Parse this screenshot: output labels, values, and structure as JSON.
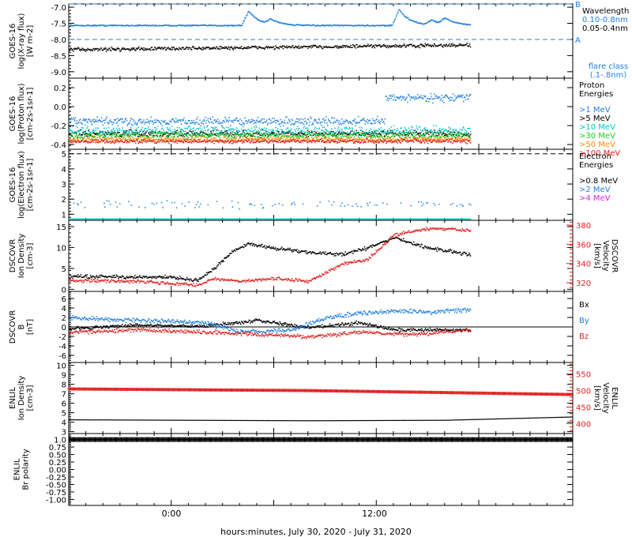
{
  "xaxis": {
    "label": "hours:minutes, July 30, 2020 - July 31, 2020",
    "tick_labels": [
      "0:00",
      "12:00"
    ],
    "tick_hours": [
      0,
      12
    ],
    "range_hours": [
      -6,
      23.5
    ]
  },
  "colors": {
    "frame": "#000000",
    "blue": "#1f7fe0",
    "black": "#000000",
    "cyan": "#00c8c8",
    "green": "#22cc22",
    "orange": "#ff8c00",
    "red": "#e02020",
    "magenta": "#e020e0"
  },
  "chart_data": [
    {
      "type": "scatter",
      "ylabel": "GOES-16\nlog(X-ray flux)\n[W m-2]",
      "ylim": [
        -9.2,
        -6.9
      ],
      "ytick_labels": [
        "-7.0",
        "-7.5",
        "-8.0",
        "-8.5",
        "-9.0"
      ],
      "ytick_values": [
        -7.0,
        -7.5,
        -8.0,
        -8.5,
        -9.0
      ],
      "dashed_levels": [
        -6.9,
        -8.0
      ],
      "level_labels": [
        "B",
        "A"
      ],
      "legend": {
        "title": "Wavelength",
        "entries": [
          "0.10-0.8nm",
          "0.05-0.4nm"
        ],
        "entry_colors": [
          "blue",
          "black"
        ],
        "note": "flare class\n(.1-.8nm)"
      },
      "series": [
        {
          "name": "0.10-0.8nm",
          "color": "blue",
          "base": -7.55,
          "noise": 0.03,
          "t_end": 17.5,
          "flares": [
            {
              "t": 4.5,
              "peak": -7.1
            },
            {
              "t": 5.8,
              "peak": -7.4
            },
            {
              "t": 13.3,
              "peak": -7.05
            },
            {
              "t": 15.2,
              "peak": -7.4
            },
            {
              "t": 16.0,
              "peak": -7.35
            }
          ]
        },
        {
          "name": "0.05-0.4nm",
          "color": "black",
          "base": -8.3,
          "noise": 0.08,
          "t_end": 17.5,
          "trend": 0.006
        }
      ]
    },
    {
      "type": "scatter",
      "ylabel": "GOES-16\nlog(Proton flux)\n[cm-2s-1sr-1]",
      "ylim": [
        -0.45,
        0.3
      ],
      "ytick_labels": [
        "0.2",
        "0.0",
        "-0.2",
        "-0.4"
      ],
      "ytick_values": [
        0.2,
        0.0,
        -0.2,
        -0.4
      ],
      "legend": {
        "title": "Proton\nEnergies",
        "entries": [
          ">1 MeV",
          ">5 MeV",
          ">10 MeV",
          ">30 MeV",
          ">50 MeV",
          ">100 MeV"
        ],
        "entry_colors": [
          "blue",
          "black",
          "cyan",
          "green",
          "orange",
          "red"
        ]
      },
      "series": [
        {
          "name": ">1 MeV",
          "color": "blue",
          "base": -0.15,
          "noise": 0.06,
          "t_end": 17.5,
          "jump": {
            "t": 12.5,
            "to": 0.1
          }
        },
        {
          "name": ">5 MeV",
          "color": "black",
          "base": -0.28,
          "noise": 0.05,
          "t_end": 17.5
        },
        {
          "name": ">10 MeV",
          "color": "cyan",
          "base": -0.25,
          "noise": 0.07,
          "t_end": 17.5
        },
        {
          "name": ">30 MeV",
          "color": "green",
          "base": -0.3,
          "noise": 0.05,
          "t_end": 17.5
        },
        {
          "name": ">50 MeV",
          "color": "orange",
          "base": -0.34,
          "noise": 0.04,
          "t_end": 17.5
        },
        {
          "name": ">100 MeV",
          "color": "red",
          "base": -0.36,
          "noise": 0.03,
          "t_end": 17.5
        }
      ]
    },
    {
      "type": "scatter",
      "ylabel": "GOES-16\nlog(Electron flux)\n[cm-2s-1sr-1]",
      "ylim": [
        0.6,
        5.3
      ],
      "ytick_labels": [
        "5",
        "4",
        "3",
        "2",
        "1"
      ],
      "ytick_values": [
        5,
        4,
        3,
        2,
        1
      ],
      "dashed_levels": [
        5.0
      ],
      "legend": {
        "title": "Electron\nEnergies",
        "entries": [
          ">0.8 MeV",
          ">2 MeV",
          ">4 MeV"
        ],
        "entry_colors": [
          "black",
          "blue",
          "magenta"
        ]
      },
      "series": [
        {
          "name": ">2 MeV",
          "color": "blue",
          "base": 1.7,
          "noise": 0.35,
          "t_end": 17.5,
          "sparse": true
        },
        {
          "name": ">2 MeV baseline",
          "color": "cyan",
          "base": 0.72,
          "noise": 0.0,
          "t_end": 17.5
        }
      ]
    },
    {
      "type": "scatter",
      "ylabel": "DSCOVR\nIon Density\n[cm-3]",
      "ylim": [
        -0.5,
        16.5
      ],
      "ytick_labels": [
        "15",
        "10",
        "5",
        "0"
      ],
      "ytick_values": [
        15,
        10,
        5,
        0
      ],
      "y2label": "DSCOVR\nVelocity\n[km/s]",
      "y2lim": [
        311,
        385
      ],
      "y2tick_labels": [
        "380",
        "360",
        "340",
        "320"
      ],
      "y2tick_values": [
        380,
        360,
        340,
        320
      ],
      "series": [
        {
          "name": "density",
          "color": "black",
          "axis": "left",
          "t_end": 17.5,
          "noise": 0.6,
          "knots": [
            [
              -6,
              3.2
            ],
            [
              0,
              3
            ],
            [
              1.5,
              2.2
            ],
            [
              2.5,
              5
            ],
            [
              3.5,
              9
            ],
            [
              4.5,
              11
            ],
            [
              6,
              10
            ],
            [
              8,
              9
            ],
            [
              10,
              8.5
            ],
            [
              11.5,
              10
            ],
            [
              13,
              12.5
            ],
            [
              15,
              10
            ],
            [
              17.5,
              8.5
            ]
          ]
        },
        {
          "name": "velocity",
          "color": "red",
          "axis": "right",
          "t_end": 17.5,
          "noise": 2.5,
          "knots": [
            [
              -6,
              323
            ],
            [
              -2,
              322
            ],
            [
              1.5,
              318
            ],
            [
              2.5,
              325
            ],
            [
              4,
              322
            ],
            [
              6,
              325
            ],
            [
              8,
              322
            ],
            [
              10,
              340
            ],
            [
              11.5,
              345
            ],
            [
              13,
              370
            ],
            [
              15,
              377
            ],
            [
              17.5,
              375
            ]
          ]
        }
      ]
    },
    {
      "type": "scatter",
      "ylabel": "DSCOVR\nB\n[nT]",
      "ylim": [
        -7.5,
        7.5
      ],
      "ytick_labels": [
        "6",
        "4",
        "2",
        "0",
        "-2",
        "-4",
        "-6"
      ],
      "ytick_values": [
        6,
        4,
        2,
        0,
        -2,
        -4,
        -6
      ],
      "zero_line": true,
      "legend": {
        "entries": [
          "Bx",
          "By",
          "Bz"
        ],
        "entry_colors": [
          "black",
          "blue",
          "red"
        ]
      },
      "series": [
        {
          "name": "Bx",
          "color": "black",
          "t_end": 17.5,
          "noise": 0.5,
          "knots": [
            [
              -6,
              -0.3
            ],
            [
              -2,
              0.5
            ],
            [
              2,
              0.3
            ],
            [
              5,
              1.5
            ],
            [
              8,
              0
            ],
            [
              11,
              1
            ],
            [
              13,
              -0.5
            ],
            [
              17.5,
              -0.5
            ]
          ]
        },
        {
          "name": "By",
          "color": "blue",
          "t_end": 17.5,
          "noise": 0.7,
          "knots": [
            [
              -6,
              2
            ],
            [
              -2,
              1.5
            ],
            [
              2,
              1
            ],
            [
              4,
              -1
            ],
            [
              7,
              -0.5
            ],
            [
              9,
              2
            ],
            [
              11,
              3
            ],
            [
              13,
              3.5
            ],
            [
              15,
              3.3
            ],
            [
              17.5,
              3.8
            ]
          ]
        },
        {
          "name": "Bz",
          "color": "red",
          "t_end": 17.5,
          "noise": 0.6,
          "knots": [
            [
              -6,
              -1
            ],
            [
              -2,
              -0.5
            ],
            [
              2,
              -1
            ],
            [
              5,
              -1.5
            ],
            [
              8,
              -2
            ],
            [
              11,
              -1
            ],
            [
              14,
              -1.5
            ],
            [
              17.5,
              -0.5
            ]
          ]
        }
      ]
    },
    {
      "type": "scatter",
      "ylabel": "ENLIL\nIon Density\n[cm-3]",
      "ylim": [
        2.8,
        10.3
      ],
      "ytick_labels": [
        "10",
        "9",
        "8",
        "7",
        "6",
        "5",
        "4",
        "3"
      ],
      "ytick_values": [
        10,
        9,
        8,
        7,
        6,
        5,
        4,
        3
      ],
      "y2label": "ENLIL\nVelocity\n[km/s]",
      "y2lim": [
        370,
        585
      ],
      "y2tick_labels": [
        "550",
        "500",
        "450",
        "400"
      ],
      "y2tick_values": [
        550,
        500,
        450,
        400
      ],
      "series": [
        {
          "name": "density",
          "color": "black",
          "axis": "left",
          "t_end": 23.5,
          "noise": 0.0,
          "knots": [
            [
              -6,
              4.3
            ],
            [
              8,
              4.2
            ],
            [
              16,
              4.25
            ],
            [
              23.5,
              4.6
            ]
          ]
        },
        {
          "name": "velocity",
          "color": "red",
          "axis": "right",
          "t_end": 23.5,
          "noise": 0.0,
          "knots": [
            [
              -6,
              505
            ],
            [
              8,
              500
            ],
            [
              16,
              494
            ],
            [
              23.5,
              488
            ]
          ]
        }
      ]
    },
    {
      "type": "scatter",
      "ylabel": "ENLIL\nBr polarity",
      "ylim": [
        -1.2,
        1.2
      ],
      "ytick_labels": [
        "1.0",
        "0.75",
        "0.50",
        "0.25",
        "0.00",
        "-0.25",
        "-0.50",
        "-0.75",
        "-1.00"
      ],
      "ytick_values": [
        1.0,
        0.75,
        0.5,
        0.25,
        0.0,
        -0.25,
        -0.5,
        -0.75,
        -1.0
      ],
      "series": [
        {
          "name": "polarity",
          "color": "black",
          "t_end": 23.5,
          "noise": 0.0,
          "knots": [
            [
              -6,
              1.0
            ],
            [
              23.5,
              1.0
            ]
          ]
        }
      ]
    }
  ]
}
